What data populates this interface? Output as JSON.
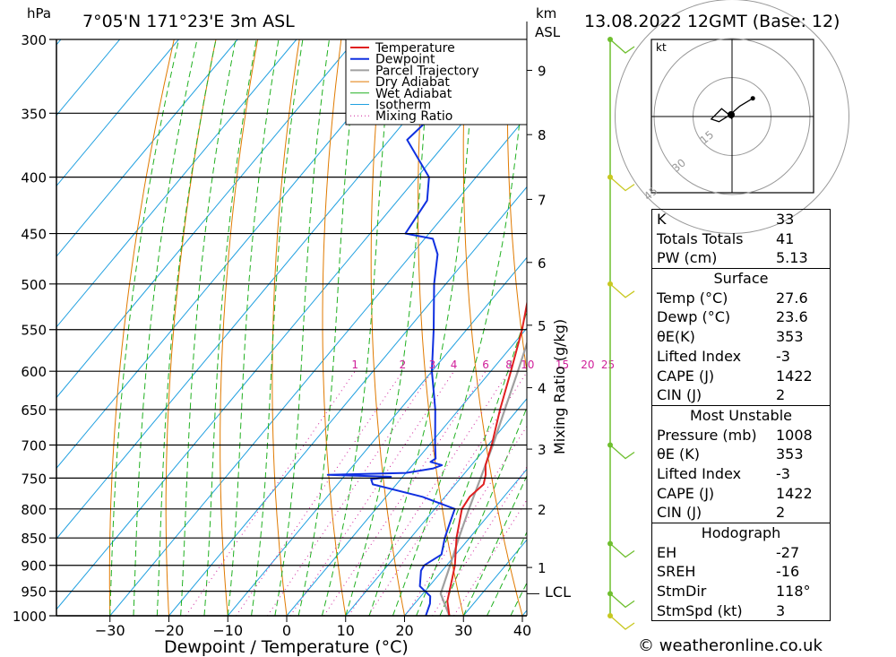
{
  "header": {
    "location": "7°05'N 171°23'E 3m ASL",
    "datetime": "13.08.2022 12GMT (Base: 12)",
    "p_unit": "hPa",
    "km_unit": "km",
    "asl": "ASL"
  },
  "legend": [
    "Temperature",
    "Dewpoint",
    "Parcel Trajectory",
    "Dry Adiabat",
    "Wet Adiabat",
    "Isotherm",
    "Mixing Ratio"
  ],
  "colors": {
    "temperature": "#e02020",
    "dewpoint": "#1030e0",
    "parcel": "#a0a0a0",
    "dry_adiabat": "#e07a00",
    "wet_adiabat": "#20b020",
    "isotherm": "#20a0e0",
    "mixing_ratio": "#d0209a",
    "wind_barb": "#6fbf2f",
    "wind_barb_upper": "#c8c820"
  },
  "chart_data": {
    "type": "skew-t",
    "xlabel": "Dewpoint / Temperature (°C)",
    "ylabel_right": "Mixing Ratio (g/kg)",
    "xlim": [
      -40,
      40
    ],
    "ylim": [
      1000,
      300
    ],
    "pressure_ticks": [
      300,
      350,
      400,
      450,
      500,
      550,
      600,
      650,
      700,
      750,
      800,
      850,
      900,
      950,
      1000
    ],
    "temp_ticks": [
      -30,
      -20,
      -10,
      0,
      10,
      20,
      30,
      40
    ],
    "km_ticks": [
      {
        "label": "1",
        "p": 904
      },
      {
        "label": "2",
        "p": 800
      },
      {
        "label": "3",
        "p": 706
      },
      {
        "label": "4",
        "p": 621
      },
      {
        "label": "5",
        "p": 545
      },
      {
        "label": "6",
        "p": 478
      },
      {
        "label": "7",
        "p": 419
      },
      {
        "label": "8",
        "p": 366
      },
      {
        "label": "9",
        "p": 320
      }
    ],
    "lcl": {
      "label": "LCL",
      "p": 955
    },
    "mixing_ratio_labels": [
      "1",
      "2",
      "3",
      "4",
      "6",
      "8",
      "10",
      "15",
      "20",
      "25"
    ],
    "mixing_ratio_values": [
      1,
      2,
      3,
      4,
      6,
      8,
      10,
      15,
      20,
      25
    ],
    "temperature": [
      [
        1000,
        27.6
      ],
      [
        970,
        25.2
      ],
      [
        955,
        24.4
      ],
      [
        925,
        22.8
      ],
      [
        900,
        21.4
      ],
      [
        850,
        17.8
      ],
      [
        800,
        14.6
      ],
      [
        780,
        14.2
      ],
      [
        760,
        14.8
      ],
      [
        745,
        13.8
      ],
      [
        730,
        12.4
      ],
      [
        700,
        10.6
      ],
      [
        650,
        7.0
      ],
      [
        600,
        3.4
      ],
      [
        550,
        -0.6
      ],
      [
        500,
        -5.6
      ],
      [
        470,
        -9.4
      ],
      [
        450,
        -12.0
      ],
      [
        420,
        -15.2
      ],
      [
        400,
        -17.8
      ],
      [
        380,
        -20.4
      ],
      [
        360,
        -23.6
      ]
    ],
    "dewpoint": [
      [
        1000,
        23.6
      ],
      [
        975,
        22.6
      ],
      [
        960,
        21.6
      ],
      [
        940,
        18.4
      ],
      [
        910,
        16.4
      ],
      [
        900,
        16.2
      ],
      [
        880,
        17.6
      ],
      [
        850,
        15.8
      ],
      [
        825,
        14.6
      ],
      [
        800,
        13.4
      ],
      [
        780,
        6.2
      ],
      [
        760,
        -4.0
      ],
      [
        752,
        -5.0
      ],
      [
        748,
        -2.0
      ],
      [
        745,
        -13.0
      ],
      [
        742,
        0.0
      ],
      [
        735,
        4.0
      ],
      [
        730,
        5.0
      ],
      [
        725,
        2.6
      ],
      [
        720,
        3.0
      ],
      [
        700,
        1.0
      ],
      [
        650,
        -4.0
      ],
      [
        600,
        -10.0
      ],
      [
        550,
        -15.6
      ],
      [
        500,
        -22.0
      ],
      [
        470,
        -25.6
      ],
      [
        455,
        -28.6
      ],
      [
        450,
        -34.0
      ],
      [
        420,
        -35.0
      ],
      [
        400,
        -38.0
      ],
      [
        370,
        -47.0
      ],
      [
        350,
        -46.0
      ],
      [
        320,
        -54.0
      ],
      [
        300,
        -58.0
      ]
    ],
    "parcel": [
      [
        1000,
        27.6
      ],
      [
        955,
        23.0
      ],
      [
        900,
        20.6
      ],
      [
        850,
        18.2
      ],
      [
        800,
        15.8
      ],
      [
        750,
        13.4
      ],
      [
        700,
        10.8
      ],
      [
        650,
        7.8
      ],
      [
        600,
        4.6
      ],
      [
        550,
        1.0
      ],
      [
        500,
        -3.0
      ],
      [
        450,
        -7.4
      ],
      [
        400,
        -12.8
      ],
      [
        360,
        -18.0
      ]
    ],
    "wind_levels": [
      {
        "p": 1000,
        "stroke": "yellow"
      },
      {
        "p": 955,
        "stroke": "green"
      },
      {
        "p": 860,
        "stroke": "green"
      },
      {
        "p": 700,
        "stroke": "green"
      },
      {
        "p": 500,
        "stroke": "yellow"
      },
      {
        "p": 400,
        "stroke": "yellow"
      },
      {
        "p": 300,
        "stroke": "green"
      }
    ]
  },
  "hodograph": {
    "unit": "kt",
    "ring_labels": [
      "15",
      "30",
      "45"
    ],
    "trace": [
      [
        0,
        -1
      ],
      [
        -1.5,
        1
      ],
      [
        -4,
        3
      ],
      [
        -8,
        -1
      ],
      [
        -5,
        -2
      ],
      [
        -1,
        0.5
      ],
      [
        3,
        4
      ],
      [
        8,
        7
      ]
    ]
  },
  "indices": {
    "top": [
      {
        "label": "K",
        "value": "33"
      },
      {
        "label": "Totals Totals",
        "value": "41"
      },
      {
        "label": "PW (cm)",
        "value": "5.13"
      }
    ],
    "surface": {
      "title": "Surface",
      "rows": [
        {
          "label": "Temp (°C)",
          "value": "27.6"
        },
        {
          "label": "Dewp (°C)",
          "value": "23.6"
        },
        {
          "label": "θE(K)",
          "value": "353"
        },
        {
          "label": "Lifted Index",
          "value": "-3"
        },
        {
          "label": "CAPE (J)",
          "value": "1422"
        },
        {
          "label": "CIN (J)",
          "value": "2"
        }
      ]
    },
    "most_unstable": {
      "title": "Most Unstable",
      "rows": [
        {
          "label": "Pressure (mb)",
          "value": "1008"
        },
        {
          "label": "θE (K)",
          "value": "353"
        },
        {
          "label": "Lifted Index",
          "value": "-3"
        },
        {
          "label": "CAPE (J)",
          "value": "1422"
        },
        {
          "label": "CIN (J)",
          "value": "2"
        }
      ]
    },
    "hodograph": {
      "title": "Hodograph",
      "rows": [
        {
          "label": "EH",
          "value": "-27"
        },
        {
          "label": "SREH",
          "value": "-16"
        },
        {
          "label": "StmDir",
          "value": "118°"
        },
        {
          "label": "StmSpd (kt)",
          "value": "3"
        }
      ]
    }
  },
  "credit": "© weatheronline.co.uk"
}
